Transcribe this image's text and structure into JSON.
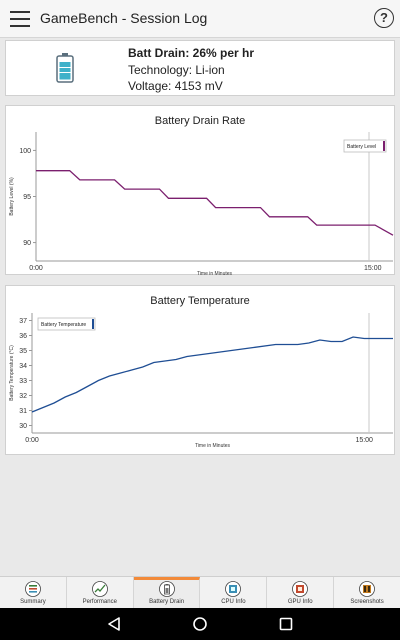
{
  "app": {
    "title": "GameBench - Session Log",
    "help_label": "?"
  },
  "summary": {
    "batt_drain": "Batt Drain: 26% per hr",
    "technology": "Technology: Li-ion",
    "voltage": "Voltage: 4153 mV"
  },
  "chart_data": [
    {
      "type": "line",
      "title": "Battery Drain Rate",
      "xlabel": "Time in Minutes",
      "ylabel": "Battery Level (%)",
      "xlim": [
        0,
        15.9
      ],
      "ylim": [
        88,
        102
      ],
      "yticks": [
        "100",
        "95",
        "90"
      ],
      "xticks": [
        "0:00",
        "15:00"
      ],
      "legend_placement": "top-right",
      "grid": false,
      "series": [
        {
          "name": "Battery Level",
          "color": "#7b1f6e",
          "x": [
            0,
            1.5,
            1.95,
            3.5,
            3.95,
            5.5,
            5.9,
            7.6,
            8.0,
            10.0,
            10.4,
            12.1,
            12.5,
            13.2,
            15.1,
            15.9
          ],
          "y": [
            97.8,
            97.8,
            96.8,
            96.8,
            95.8,
            95.8,
            94.8,
            94.8,
            93.8,
            93.8,
            92.8,
            92.8,
            91.9,
            91.9,
            91.9,
            90.8
          ]
        }
      ]
    },
    {
      "type": "line",
      "title": "Battery Temperature",
      "xlabel": "Time in Minutes",
      "ylabel": "Battery Temperature (°C)",
      "xlim": [
        0,
        16.3
      ],
      "ylim": [
        29.5,
        37.5
      ],
      "yticks": [
        "37",
        "36",
        "35",
        "34",
        "33",
        "32",
        "31",
        "30"
      ],
      "xticks": [
        "0:00",
        "15:00"
      ],
      "legend_placement": "top-left",
      "grid": false,
      "series": [
        {
          "name": "Battery Temperature",
          "color": "#1f4e94",
          "x": [
            0,
            0.5,
            1.0,
            1.5,
            2.0,
            2.5,
            3.0,
            3.5,
            4.0,
            4.5,
            5.0,
            5.5,
            6.0,
            6.5,
            7.0,
            8.0,
            9.0,
            10.0,
            11.0,
            11.5,
            12.0,
            12.5,
            13.0,
            13.5,
            14.0,
            14.5,
            15.0,
            15.5,
            16.3
          ],
          "y": [
            30.9,
            31.2,
            31.5,
            31.9,
            32.2,
            32.6,
            33.0,
            33.3,
            33.5,
            33.7,
            33.9,
            34.2,
            34.3,
            34.4,
            34.6,
            34.8,
            35.0,
            35.2,
            35.4,
            35.4,
            35.4,
            35.5,
            35.7,
            35.6,
            35.6,
            35.9,
            35.8,
            35.8,
            35.8
          ]
        }
      ]
    }
  ],
  "nav": {
    "tabs": [
      {
        "label": "Summary",
        "icon": "summary-icon",
        "color": "#3a7d3a"
      },
      {
        "label": "Performance",
        "icon": "performance-icon",
        "color": "#3a7d3a"
      },
      {
        "label": "Battery Drain",
        "icon": "battery-drain-icon",
        "color": "#555555"
      },
      {
        "label": "CPU Info",
        "icon": "cpu-icon",
        "color": "#3a8fb5"
      },
      {
        "label": "GPU Info",
        "icon": "gpu-icon",
        "color": "#c24a2f"
      },
      {
        "label": "Screenshots",
        "icon": "screenshots-icon",
        "color": "#c27a1f"
      }
    ],
    "active_index": 2,
    "active_color": "#f28a3a"
  }
}
